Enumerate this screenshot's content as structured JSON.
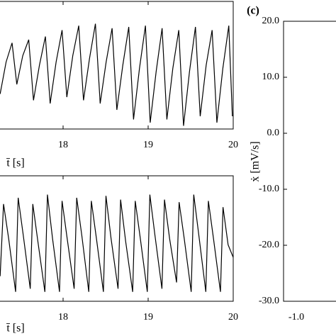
{
  "chart_data": [
    {
      "type": "line",
      "xlabel": "t̄ [s]",
      "xlim": [
        17,
        20
      ],
      "ylim": [
        -1,
        1
      ],
      "xticks": [
        18,
        19,
        20
      ],
      "series": [
        {
          "color": "#000000",
          "x": [
            17.26,
            17.33,
            17.4,
            17.456,
            17.526,
            17.596,
            17.652,
            17.722,
            17.792,
            17.848,
            17.918,
            17.988,
            18.044,
            18.114,
            18.184,
            18.24,
            18.31,
            18.38,
            18.436,
            18.506,
            18.576,
            18.632,
            18.702,
            18.772,
            18.828,
            18.898,
            18.968,
            19.024,
            19.094,
            19.164,
            19.22,
            19.29,
            19.36,
            19.416,
            19.486,
            19.556,
            19.612,
            19.682,
            19.752,
            19.808,
            19.878,
            19.948,
            19.99
          ],
          "values": [
            -0.45,
            0.05,
            0.35,
            -0.3,
            0.15,
            0.4,
            -0.55,
            0.0,
            0.45,
            -0.6,
            0.05,
            0.55,
            -0.5,
            0.15,
            0.62,
            -0.55,
            0.1,
            0.65,
            -0.6,
            0.05,
            0.58,
            -0.7,
            0.0,
            0.6,
            -0.85,
            -0.05,
            0.62,
            -0.9,
            -0.1,
            0.58,
            -0.85,
            -0.05,
            0.55,
            -0.95,
            -0.1,
            0.6,
            -0.8,
            0.0,
            0.55,
            -0.9,
            -0.05,
            0.62,
            -0.8
          ]
        }
      ]
    },
    {
      "type": "line",
      "xlabel": "t̄ [s]",
      "xlim": [
        17,
        20
      ],
      "ylim": [
        -1,
        1
      ],
      "xticks": [
        18,
        19,
        20
      ],
      "series": [
        {
          "color": "#000000",
          "x": [
            17.26,
            17.3,
            17.36,
            17.442,
            17.472,
            17.532,
            17.614,
            17.644,
            17.704,
            17.786,
            17.816,
            17.876,
            17.958,
            17.988,
            18.048,
            18.13,
            18.16,
            18.22,
            18.302,
            18.332,
            18.392,
            18.474,
            18.504,
            18.564,
            18.646,
            18.676,
            18.736,
            18.818,
            18.848,
            18.908,
            18.99,
            19.02,
            19.08,
            19.162,
            19.192,
            19.252,
            19.334,
            19.364,
            19.424,
            19.506,
            19.536,
            19.596,
            19.678,
            19.708,
            19.768,
            19.85,
            19.88,
            19.94,
            20.0
          ],
          "values": [
            -0.6,
            0.55,
            0.0,
            -0.85,
            0.65,
            0.05,
            -0.8,
            0.55,
            -0.05,
            -0.85,
            0.7,
            0.0,
            -0.85,
            0.6,
            0.0,
            -0.8,
            0.65,
            0.05,
            -0.85,
            0.6,
            0.0,
            -0.85,
            0.68,
            0.0,
            -0.8,
            0.62,
            -0.05,
            -0.85,
            0.6,
            0.0,
            -0.85,
            0.7,
            0.05,
            -0.8,
            0.62,
            0.0,
            -0.7,
            0.58,
            0.0,
            -0.85,
            0.7,
            0.05,
            -0.85,
            0.6,
            0.0,
            -0.85,
            0.5,
            -0.1,
            -0.3
          ]
        }
      ]
    },
    {
      "type": "line",
      "title": "(c)",
      "ylabel": "ẋ [mV/s]",
      "xlim": [
        -1,
        1
      ],
      "ylim": [
        -30,
        20
      ],
      "xticks": [
        {
          "value": -1,
          "label": "-1.0"
        }
      ],
      "yticks": [
        {
          "value": 20,
          "label": "20.0"
        },
        {
          "value": 10,
          "label": "10.0"
        },
        {
          "value": 0,
          "label": "0.0"
        },
        {
          "value": -10,
          "label": "-10.0"
        },
        {
          "value": -20,
          "label": "-20.0"
        },
        {
          "value": -30,
          "label": "-30.0"
        }
      ],
      "series": []
    }
  ]
}
